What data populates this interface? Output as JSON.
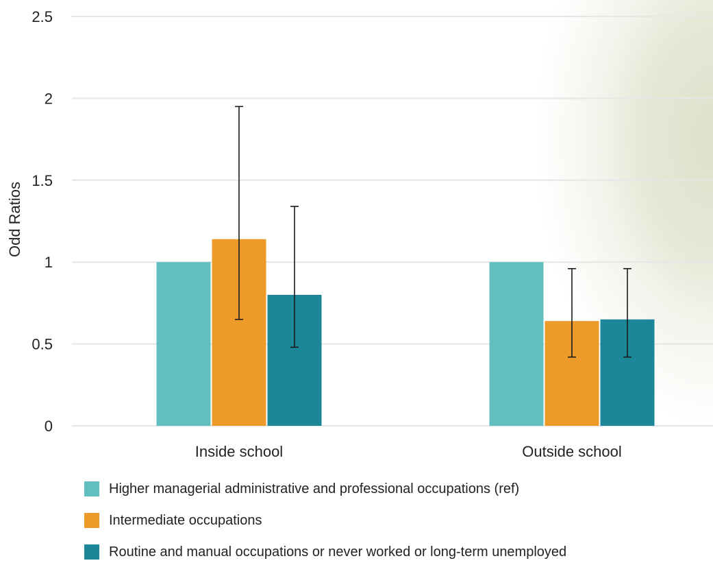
{
  "chart_data": {
    "type": "bar",
    "title": "",
    "xlabel": "",
    "ylabel": "Odd Ratios",
    "ylim": [
      0,
      2.5
    ],
    "yticks": [
      {
        "value": 0,
        "label": "0"
      },
      {
        "value": 0.5,
        "label": "0.5"
      },
      {
        "value": 1,
        "label": "1"
      },
      {
        "value": 1.5,
        "label": "1.5"
      },
      {
        "value": 2,
        "label": "2"
      },
      {
        "value": 2.5,
        "label": "2.5"
      }
    ],
    "grid": true,
    "legend_position": "bottom",
    "categories": [
      "Inside school",
      "Outside school"
    ],
    "series": [
      {
        "name": "Higher managerial administrative and professional occupations (ref)",
        "color": "#63bfbf",
        "values": [
          1.0,
          1.0
        ],
        "error_low": [
          null,
          null
        ],
        "error_high": [
          null,
          null
        ]
      },
      {
        "name": "Intermediate occupations",
        "color": "#ec9a2a",
        "values": [
          1.14,
          0.64
        ],
        "error_low": [
          0.65,
          0.42
        ],
        "error_high": [
          1.95,
          0.96
        ]
      },
      {
        "name": "Routine and manual occupations or never worked or long-term unemployed",
        "color": "#1d879a",
        "values": [
          0.8,
          0.65
        ],
        "error_low": [
          0.48,
          0.42
        ],
        "error_high": [
          1.34,
          0.96
        ]
      }
    ]
  }
}
